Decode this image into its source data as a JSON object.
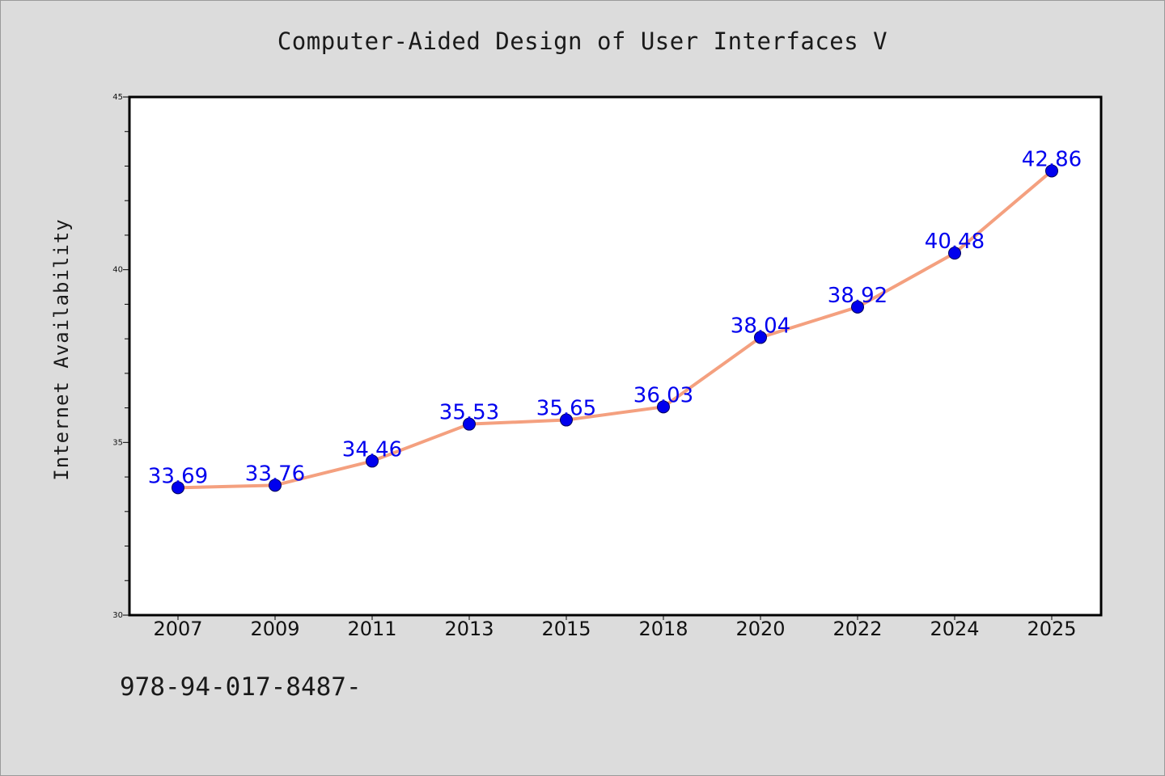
{
  "title": "Computer-Aided Design of User Interfaces V",
  "footer": "978-94-017-8487-",
  "colors": {
    "background": "#dcdcdc",
    "plot_background": "#ffffff",
    "line": "#f4a07f",
    "marker": "#0000ee",
    "data_label": "#0000ee"
  },
  "chart_data": {
    "type": "line",
    "title": "Computer-Aided Design of User Interfaces V",
    "xlabel": "",
    "ylabel": "Internet Availability",
    "categories": [
      "2007",
      "2009",
      "2011",
      "2013",
      "2015",
      "2018",
      "2020",
      "2022",
      "2024",
      "2025"
    ],
    "series": [
      {
        "values": [
          33.69,
          33.76,
          34.46,
          35.53,
          35.65,
          36.03,
          38.04,
          38.92,
          40.48,
          42.86
        ],
        "data_labels": [
          "33.69",
          "33.76",
          "34.46",
          "35.53",
          "35.65",
          "36.03",
          "38.04",
          "38.92",
          "40.48",
          "42.86"
        ]
      }
    ],
    "ylim": [
      30,
      45
    ],
    "yticks": [
      "30",
      "35",
      "40",
      "45"
    ],
    "yminor_step": 1,
    "grid": false,
    "legend": "none"
  }
}
